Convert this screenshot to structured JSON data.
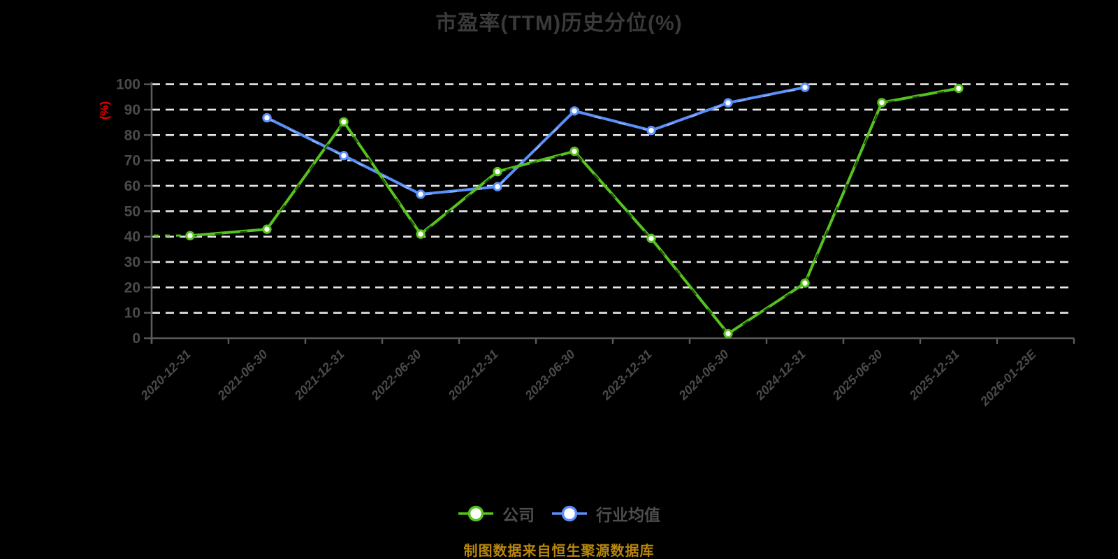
{
  "title": "市盈率(TTM)历史分位(%)",
  "y_axis_unit": "(%)",
  "caption": "制图数据来自恒生聚源数据库",
  "colors": {
    "background": "#000000",
    "title_text": "#3a3a3a",
    "axis": "#5a5a5a",
    "tick_label": "#4b4b4b",
    "grid": "#e8e8e8",
    "unit_label": "#e80000",
    "legend_text": "#4d4d4d",
    "caption_text": "#b8860b",
    "marker_fill": "#ffffff"
  },
  "chart_data": {
    "type": "line",
    "title": "市盈率(TTM)历史分位(%)",
    "xlabel": "",
    "ylabel": "(%)",
    "ylim": [
      0,
      100
    ],
    "y_ticks": [
      0,
      10,
      20,
      30,
      40,
      50,
      60,
      70,
      80,
      90,
      100
    ],
    "grid": "horizontal-dashed",
    "legend_position": "bottom",
    "categories": [
      "2020-12-31",
      "2021-06-30",
      "2021-12-31",
      "2022-06-30",
      "2022-12-31",
      "2023-06-30",
      "2023-12-31",
      "2024-06-30",
      "2024-12-31",
      "2025-06-30",
      "2025-12-31",
      "2026-01-23E"
    ],
    "series": [
      {
        "key": "company",
        "name": "公司",
        "color": "#55c21e",
        "values": [
          40.4,
          42.9,
          85.2,
          41.0,
          65.6,
          73.6,
          39.3,
          1.8,
          21.7,
          92.8,
          98.4,
          null
        ]
      },
      {
        "key": "industry",
        "name": "行业均值",
        "color": "#5b8ff9",
        "values": [
          null,
          86.8,
          71.9,
          56.7,
          59.7,
          89.5,
          81.8,
          92.7,
          98.8,
          null,
          null,
          null
        ]
      }
    ]
  }
}
